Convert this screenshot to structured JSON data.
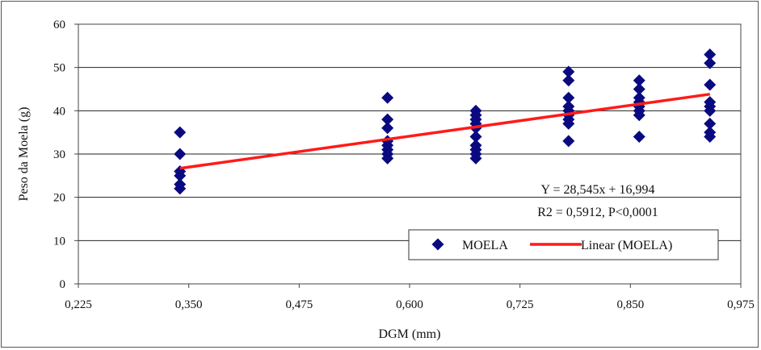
{
  "chart_data": {
    "type": "scatter",
    "xlabel": "DGM (mm)",
    "ylabel": "Peso da Moela (g)",
    "xlim": [
      0.225,
      0.975
    ],
    "ylim": [
      0,
      60
    ],
    "x_ticks": [
      "0,225",
      "0,350",
      "0,475",
      "0,600",
      "0,725",
      "0,850",
      "0,975"
    ],
    "y_ticks": [
      "0",
      "10",
      "20",
      "30",
      "40",
      "50",
      "60"
    ],
    "grid": "horizontal",
    "legend_position": "bottom-right",
    "series": [
      {
        "name": "MOELA",
        "marker": "diamond",
        "color": "#0a0a80",
        "points": [
          [
            0.34,
            35
          ],
          [
            0.34,
            30
          ],
          [
            0.34,
            26
          ],
          [
            0.34,
            25
          ],
          [
            0.34,
            23
          ],
          [
            0.34,
            22
          ],
          [
            0.575,
            43
          ],
          [
            0.575,
            38
          ],
          [
            0.575,
            36
          ],
          [
            0.575,
            33
          ],
          [
            0.575,
            32
          ],
          [
            0.575,
            31
          ],
          [
            0.575,
            30
          ],
          [
            0.575,
            29
          ],
          [
            0.675,
            40
          ],
          [
            0.675,
            39
          ],
          [
            0.675,
            38
          ],
          [
            0.675,
            37
          ],
          [
            0.675,
            36
          ],
          [
            0.675,
            34
          ],
          [
            0.675,
            32
          ],
          [
            0.675,
            31
          ],
          [
            0.675,
            30
          ],
          [
            0.675,
            29
          ],
          [
            0.78,
            49
          ],
          [
            0.78,
            47
          ],
          [
            0.78,
            43
          ],
          [
            0.78,
            41
          ],
          [
            0.78,
            40
          ],
          [
            0.78,
            39
          ],
          [
            0.78,
            38
          ],
          [
            0.78,
            37
          ],
          [
            0.78,
            33
          ],
          [
            0.86,
            47
          ],
          [
            0.86,
            45
          ],
          [
            0.86,
            43
          ],
          [
            0.86,
            42
          ],
          [
            0.86,
            41
          ],
          [
            0.86,
            40
          ],
          [
            0.86,
            39
          ],
          [
            0.86,
            34
          ],
          [
            0.94,
            53
          ],
          [
            0.94,
            51
          ],
          [
            0.94,
            46
          ],
          [
            0.94,
            42
          ],
          [
            0.94,
            41
          ],
          [
            0.94,
            40
          ],
          [
            0.94,
            37
          ],
          [
            0.94,
            35
          ],
          [
            0.94,
            34
          ]
        ]
      },
      {
        "name": "Linear (MOELA)",
        "type": "line",
        "color": "#ff1a1a",
        "x_range": [
          0.34,
          0.94
        ],
        "slope": 28.545,
        "intercept": 16.994
      }
    ],
    "annotations": [
      "Y = 28,545x + 16,994",
      "R2 = 0,5912, P<0,0001"
    ]
  }
}
